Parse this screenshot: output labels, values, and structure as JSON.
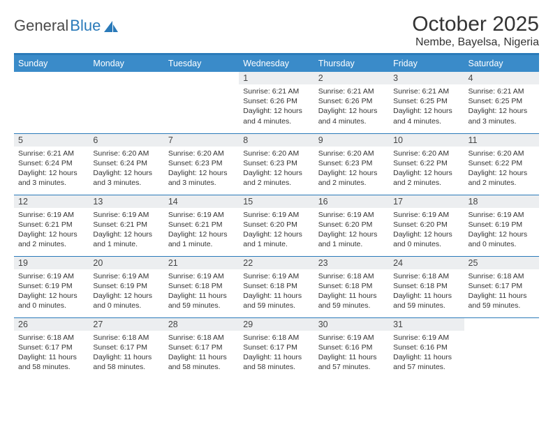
{
  "brand": {
    "part1": "General",
    "part2": "Blue"
  },
  "title": "October 2025",
  "location": "Nembe, Bayelsa, Nigeria",
  "colors": {
    "header_bg": "#3a8bc9",
    "accent": "#2a7ab9",
    "daynum_bg": "#eceef0",
    "text": "#333333",
    "white": "#ffffff"
  },
  "fonts": {
    "title_size": 30,
    "location_size": 16,
    "dow_size": 12.5,
    "daynum_size": 12.5,
    "body_size": 10.5
  },
  "days_of_week": [
    "Sunday",
    "Monday",
    "Tuesday",
    "Wednesday",
    "Thursday",
    "Friday",
    "Saturday"
  ],
  "weeks": [
    [
      {
        "n": "",
        "lines": []
      },
      {
        "n": "",
        "lines": []
      },
      {
        "n": "",
        "lines": []
      },
      {
        "n": "1",
        "lines": [
          "Sunrise: 6:21 AM",
          "Sunset: 6:26 PM",
          "Daylight: 12 hours",
          "and 4 minutes."
        ]
      },
      {
        "n": "2",
        "lines": [
          "Sunrise: 6:21 AM",
          "Sunset: 6:26 PM",
          "Daylight: 12 hours",
          "and 4 minutes."
        ]
      },
      {
        "n": "3",
        "lines": [
          "Sunrise: 6:21 AM",
          "Sunset: 6:25 PM",
          "Daylight: 12 hours",
          "and 4 minutes."
        ]
      },
      {
        "n": "4",
        "lines": [
          "Sunrise: 6:21 AM",
          "Sunset: 6:25 PM",
          "Daylight: 12 hours",
          "and 3 minutes."
        ]
      }
    ],
    [
      {
        "n": "5",
        "lines": [
          "Sunrise: 6:21 AM",
          "Sunset: 6:24 PM",
          "Daylight: 12 hours",
          "and 3 minutes."
        ]
      },
      {
        "n": "6",
        "lines": [
          "Sunrise: 6:20 AM",
          "Sunset: 6:24 PM",
          "Daylight: 12 hours",
          "and 3 minutes."
        ]
      },
      {
        "n": "7",
        "lines": [
          "Sunrise: 6:20 AM",
          "Sunset: 6:23 PM",
          "Daylight: 12 hours",
          "and 3 minutes."
        ]
      },
      {
        "n": "8",
        "lines": [
          "Sunrise: 6:20 AM",
          "Sunset: 6:23 PM",
          "Daylight: 12 hours",
          "and 2 minutes."
        ]
      },
      {
        "n": "9",
        "lines": [
          "Sunrise: 6:20 AM",
          "Sunset: 6:23 PM",
          "Daylight: 12 hours",
          "and 2 minutes."
        ]
      },
      {
        "n": "10",
        "lines": [
          "Sunrise: 6:20 AM",
          "Sunset: 6:22 PM",
          "Daylight: 12 hours",
          "and 2 minutes."
        ]
      },
      {
        "n": "11",
        "lines": [
          "Sunrise: 6:20 AM",
          "Sunset: 6:22 PM",
          "Daylight: 12 hours",
          "and 2 minutes."
        ]
      }
    ],
    [
      {
        "n": "12",
        "lines": [
          "Sunrise: 6:19 AM",
          "Sunset: 6:21 PM",
          "Daylight: 12 hours",
          "and 2 minutes."
        ]
      },
      {
        "n": "13",
        "lines": [
          "Sunrise: 6:19 AM",
          "Sunset: 6:21 PM",
          "Daylight: 12 hours",
          "and 1 minute."
        ]
      },
      {
        "n": "14",
        "lines": [
          "Sunrise: 6:19 AM",
          "Sunset: 6:21 PM",
          "Daylight: 12 hours",
          "and 1 minute."
        ]
      },
      {
        "n": "15",
        "lines": [
          "Sunrise: 6:19 AM",
          "Sunset: 6:20 PM",
          "Daylight: 12 hours",
          "and 1 minute."
        ]
      },
      {
        "n": "16",
        "lines": [
          "Sunrise: 6:19 AM",
          "Sunset: 6:20 PM",
          "Daylight: 12 hours",
          "and 1 minute."
        ]
      },
      {
        "n": "17",
        "lines": [
          "Sunrise: 6:19 AM",
          "Sunset: 6:20 PM",
          "Daylight: 12 hours",
          "and 0 minutes."
        ]
      },
      {
        "n": "18",
        "lines": [
          "Sunrise: 6:19 AM",
          "Sunset: 6:19 PM",
          "Daylight: 12 hours",
          "and 0 minutes."
        ]
      }
    ],
    [
      {
        "n": "19",
        "lines": [
          "Sunrise: 6:19 AM",
          "Sunset: 6:19 PM",
          "Daylight: 12 hours",
          "and 0 minutes."
        ]
      },
      {
        "n": "20",
        "lines": [
          "Sunrise: 6:19 AM",
          "Sunset: 6:19 PM",
          "Daylight: 12 hours",
          "and 0 minutes."
        ]
      },
      {
        "n": "21",
        "lines": [
          "Sunrise: 6:19 AM",
          "Sunset: 6:18 PM",
          "Daylight: 11 hours",
          "and 59 minutes."
        ]
      },
      {
        "n": "22",
        "lines": [
          "Sunrise: 6:19 AM",
          "Sunset: 6:18 PM",
          "Daylight: 11 hours",
          "and 59 minutes."
        ]
      },
      {
        "n": "23",
        "lines": [
          "Sunrise: 6:18 AM",
          "Sunset: 6:18 PM",
          "Daylight: 11 hours",
          "and 59 minutes."
        ]
      },
      {
        "n": "24",
        "lines": [
          "Sunrise: 6:18 AM",
          "Sunset: 6:18 PM",
          "Daylight: 11 hours",
          "and 59 minutes."
        ]
      },
      {
        "n": "25",
        "lines": [
          "Sunrise: 6:18 AM",
          "Sunset: 6:17 PM",
          "Daylight: 11 hours",
          "and 59 minutes."
        ]
      }
    ],
    [
      {
        "n": "26",
        "lines": [
          "Sunrise: 6:18 AM",
          "Sunset: 6:17 PM",
          "Daylight: 11 hours",
          "and 58 minutes."
        ]
      },
      {
        "n": "27",
        "lines": [
          "Sunrise: 6:18 AM",
          "Sunset: 6:17 PM",
          "Daylight: 11 hours",
          "and 58 minutes."
        ]
      },
      {
        "n": "28",
        "lines": [
          "Sunrise: 6:18 AM",
          "Sunset: 6:17 PM",
          "Daylight: 11 hours",
          "and 58 minutes."
        ]
      },
      {
        "n": "29",
        "lines": [
          "Sunrise: 6:18 AM",
          "Sunset: 6:17 PM",
          "Daylight: 11 hours",
          "and 58 minutes."
        ]
      },
      {
        "n": "30",
        "lines": [
          "Sunrise: 6:19 AM",
          "Sunset: 6:16 PM",
          "Daylight: 11 hours",
          "and 57 minutes."
        ]
      },
      {
        "n": "31",
        "lines": [
          "Sunrise: 6:19 AM",
          "Sunset: 6:16 PM",
          "Daylight: 11 hours",
          "and 57 minutes."
        ]
      },
      {
        "n": "",
        "lines": []
      }
    ]
  ]
}
